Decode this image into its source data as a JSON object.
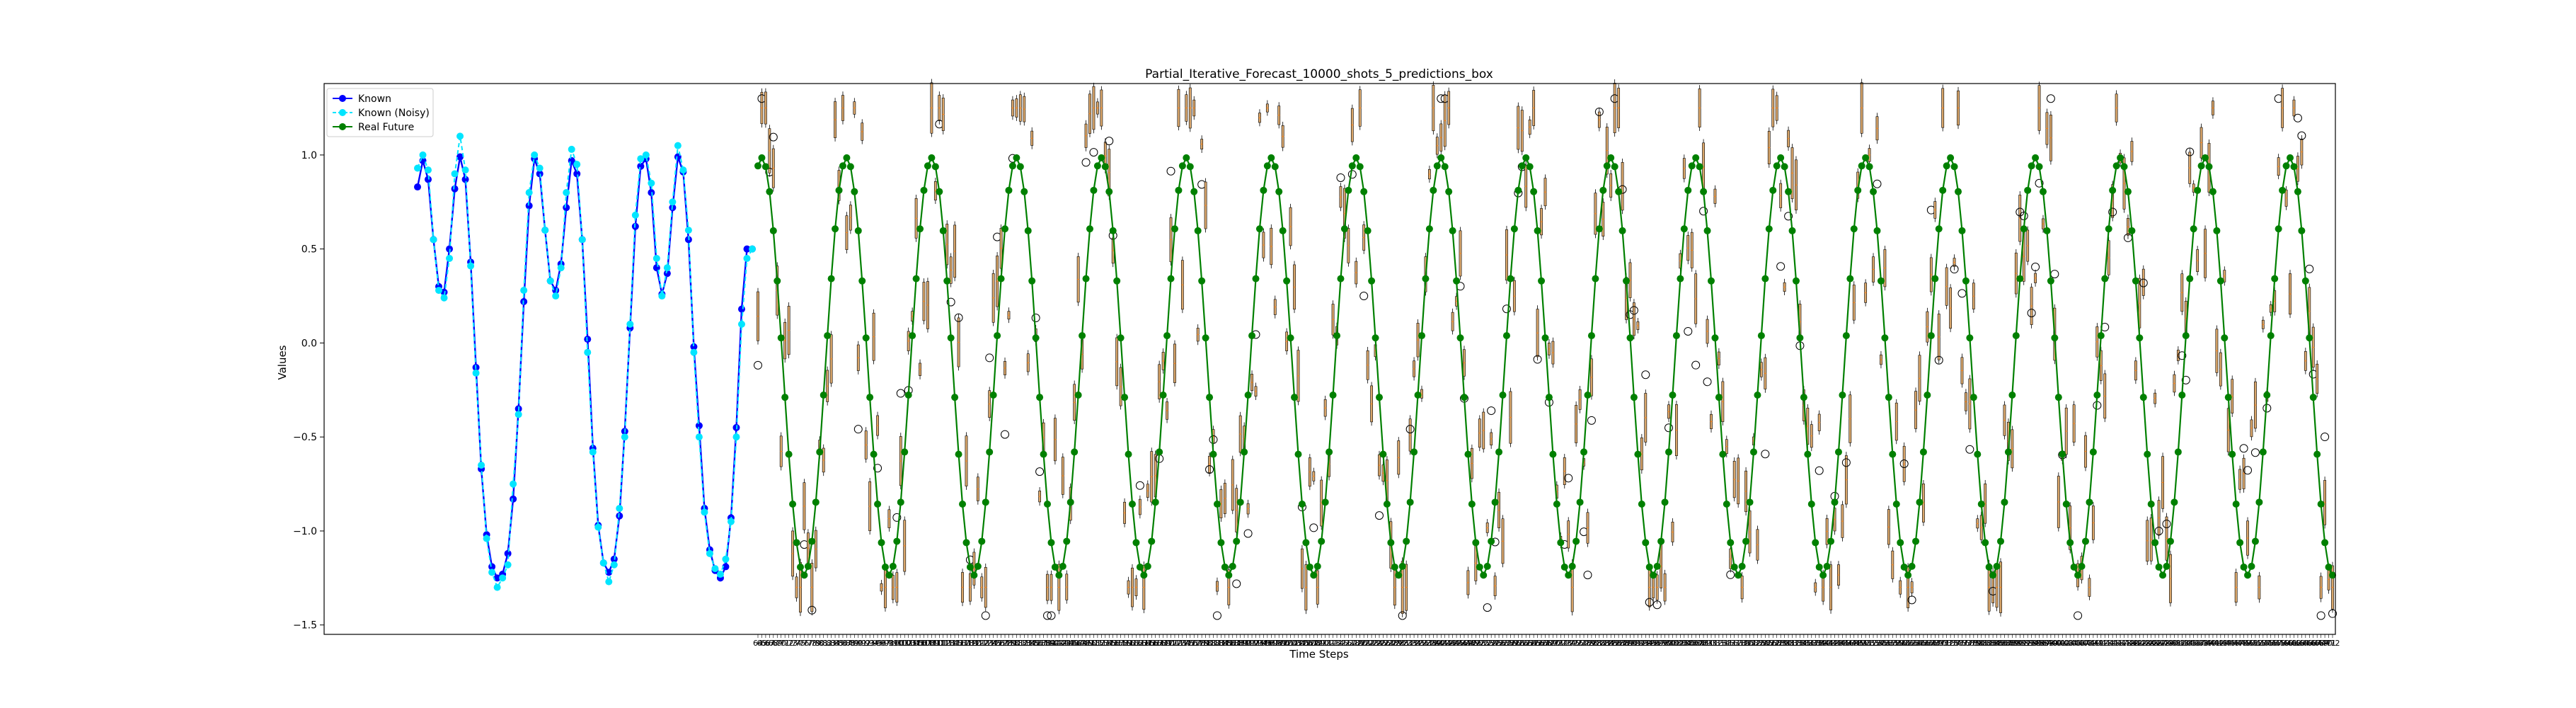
{
  "chart_data": {
    "type": "line",
    "title": "Partial_Iterative_Forecast_10000_shots_5_predictions_box",
    "xlabel": "Time Steps",
    "ylabel": "Values",
    "ylim": [
      -1.55,
      1.38
    ],
    "yticks": [
      1.0,
      0.5,
      0.0,
      -0.5,
      -1.0,
      -1.5
    ],
    "yticklabels": [
      "1.0",
      "0.5",
      "0.0",
      "−0.5",
      "−1.0",
      "−1.5"
    ],
    "grid": false,
    "legend": "top-left",
    "colors": {
      "known": "#0000ff",
      "noisy": "#00e5ff",
      "future": "#008000",
      "box": "#d9a66b"
    },
    "series": [
      {
        "name": "Known",
        "values": [
          0.83,
          0.97,
          0.87,
          0.55,
          0.3,
          0.27,
          0.5,
          0.82,
          0.99,
          0.87,
          0.43,
          -0.13,
          -0.67,
          -1.02,
          -1.19,
          -1.25,
          -1.23,
          -1.12,
          -0.83,
          -0.35,
          0.22,
          0.73,
          0.98,
          0.9,
          0.6,
          0.33,
          0.28,
          0.42,
          0.72,
          0.97,
          0.9,
          0.55,
          0.02,
          -0.56,
          -0.97,
          -1.17,
          -1.22,
          -1.15,
          -0.92,
          -0.47,
          0.08,
          0.62,
          0.94,
          0.98,
          0.8,
          0.4,
          0.26,
          0.37,
          0.72,
          0.99,
          0.91,
          0.55,
          -0.02,
          -0.44,
          -0.88,
          -1.1,
          -1.21,
          -1.25,
          -1.19,
          -0.93,
          -0.45,
          0.18,
          0.5,
          0.5
        ]
      },
      {
        "name": "Known (Noisy)",
        "values": [
          0.93,
          1.0,
          0.92,
          0.55,
          0.28,
          0.24,
          0.45,
          0.9,
          1.1,
          0.92,
          0.41,
          -0.16,
          -0.65,
          -1.04,
          -1.22,
          -1.3,
          -1.25,
          -1.18,
          -0.75,
          -0.38,
          0.28,
          0.8,
          1.0,
          0.93,
          0.6,
          0.33,
          0.25,
          0.4,
          0.8,
          1.03,
          0.95,
          0.55,
          -0.05,
          -0.58,
          -0.98,
          -1.17,
          -1.27,
          -1.18,
          -0.88,
          -0.5,
          0.1,
          0.68,
          0.98,
          1.0,
          0.85,
          0.45,
          0.25,
          0.4,
          0.75,
          1.05,
          0.92,
          0.6,
          -0.05,
          -0.5,
          -0.9,
          -1.12,
          -1.2,
          -1.23,
          -1.15,
          -0.95,
          -0.5,
          0.1,
          0.45,
          0.5
        ]
      },
      {
        "name": "Real Future",
        "values": []
      }
    ],
    "future_period": 22,
    "future_amplitude": 1.11,
    "future_offset": -0.125,
    "future_phase": -0.28
  }
}
